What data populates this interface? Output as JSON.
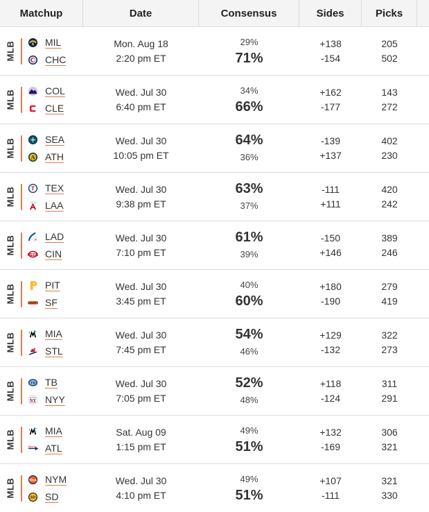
{
  "header": {
    "matchup": "Matchup",
    "date": "Date",
    "consensus": "Consensus",
    "sides": "Sides",
    "picks": "Picks"
  },
  "colors": {
    "accent": "#e07a4a"
  },
  "games": [
    {
      "league": "MLB",
      "away": {
        "abbr": "MIL",
        "icon": "brewers-logo-icon"
      },
      "home": {
        "abbr": "CHC",
        "icon": "cubs-logo-icon"
      },
      "date": "Mon. Aug 18",
      "time": "2:20 pm ET",
      "away_pct": "29%",
      "home_pct": "71%",
      "favored": "home",
      "away_side": "+138",
      "home_side": "-154",
      "away_picks": "205",
      "home_picks": "502"
    },
    {
      "league": "MLB",
      "away": {
        "abbr": "COL",
        "icon": "rockies-logo-icon"
      },
      "home": {
        "abbr": "CLE",
        "icon": "guardians-logo-icon"
      },
      "date": "Wed. Jul 30",
      "time": "6:40 pm ET",
      "away_pct": "34%",
      "home_pct": "66%",
      "favored": "home",
      "away_side": "+162",
      "home_side": "-177",
      "away_picks": "143",
      "home_picks": "272"
    },
    {
      "league": "MLB",
      "away": {
        "abbr": "SEA",
        "icon": "mariners-logo-icon"
      },
      "home": {
        "abbr": "ATH",
        "icon": "athletics-logo-icon"
      },
      "date": "Wed. Jul 30",
      "time": "10:05 pm ET",
      "away_pct": "64%",
      "home_pct": "36%",
      "favored": "away",
      "away_side": "-139",
      "home_side": "+137",
      "away_picks": "402",
      "home_picks": "230"
    },
    {
      "league": "MLB",
      "away": {
        "abbr": "TEX",
        "icon": "rangers-logo-icon"
      },
      "home": {
        "abbr": "LAA",
        "icon": "angels-logo-icon"
      },
      "date": "Wed. Jul 30",
      "time": "9:38 pm ET",
      "away_pct": "63%",
      "home_pct": "37%",
      "favored": "away",
      "away_side": "-111",
      "home_side": "+111",
      "away_picks": "420",
      "home_picks": "242"
    },
    {
      "league": "MLB",
      "away": {
        "abbr": "LAD",
        "icon": "dodgers-logo-icon"
      },
      "home": {
        "abbr": "CIN",
        "icon": "reds-logo-icon"
      },
      "date": "Wed. Jul 30",
      "time": "7:10 pm ET",
      "away_pct": "61%",
      "home_pct": "39%",
      "favored": "away",
      "away_side": "-150",
      "home_side": "+146",
      "away_picks": "389",
      "home_picks": "246"
    },
    {
      "league": "MLB",
      "away": {
        "abbr": "PIT",
        "icon": "pirates-logo-icon"
      },
      "home": {
        "abbr": "SF",
        "icon": "giants-logo-icon"
      },
      "date": "Wed. Jul 30",
      "time": "3:45 pm ET",
      "away_pct": "40%",
      "home_pct": "60%",
      "favored": "home",
      "away_side": "+180",
      "home_side": "-190",
      "away_picks": "279",
      "home_picks": "419"
    },
    {
      "league": "MLB",
      "away": {
        "abbr": "MIA",
        "icon": "marlins-logo-icon"
      },
      "home": {
        "abbr": "STL",
        "icon": "cardinals-logo-icon"
      },
      "date": "Wed. Jul 30",
      "time": "7:45 pm ET",
      "away_pct": "54%",
      "home_pct": "46%",
      "favored": "away",
      "away_side": "+129",
      "home_side": "-132",
      "away_picks": "322",
      "home_picks": "273"
    },
    {
      "league": "MLB",
      "away": {
        "abbr": "TB",
        "icon": "rays-logo-icon"
      },
      "home": {
        "abbr": "NYY",
        "icon": "yankees-logo-icon"
      },
      "date": "Wed. Jul 30",
      "time": "7:05 pm ET",
      "away_pct": "52%",
      "home_pct": "48%",
      "favored": "away",
      "away_side": "+118",
      "home_side": "-124",
      "away_picks": "311",
      "home_picks": "291"
    },
    {
      "league": "MLB",
      "away": {
        "abbr": "MIA",
        "icon": "marlins-logo-icon"
      },
      "home": {
        "abbr": "ATL",
        "icon": "braves-logo-icon"
      },
      "date": "Sat. Aug 09",
      "time": "1:15 pm ET",
      "away_pct": "49%",
      "home_pct": "51%",
      "favored": "home",
      "away_side": "+132",
      "home_side": "-169",
      "away_picks": "306",
      "home_picks": "321"
    },
    {
      "league": "MLB",
      "away": {
        "abbr": "NYM",
        "icon": "mets-logo-icon"
      },
      "home": {
        "abbr": "SD",
        "icon": "padres-logo-icon"
      },
      "date": "Wed. Jul 30",
      "time": "4:10 pm ET",
      "away_pct": "49%",
      "home_pct": "51%",
      "favored": "home",
      "away_side": "+107",
      "home_side": "-111",
      "away_picks": "321",
      "home_picks": "330"
    }
  ]
}
